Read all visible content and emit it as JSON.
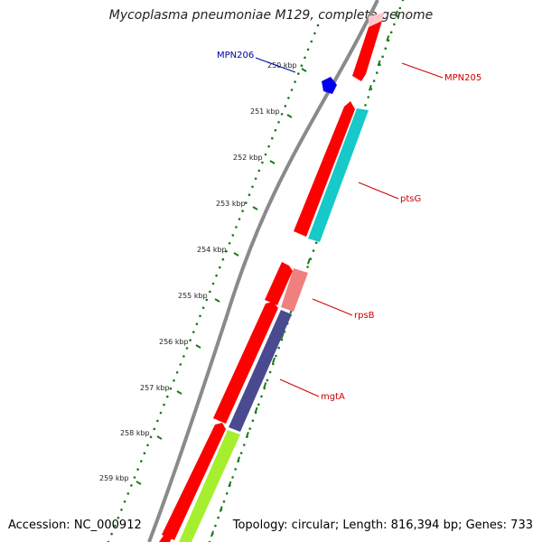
{
  "title": "Mycoplasma pneumoniae M129, complete genome",
  "footer": {
    "accession": "Accession: NC_000912",
    "topology": "Topology: circular; Length: 816,394 bp; Genes: 733"
  },
  "colors": {
    "backbone": "#8c8c8c",
    "ticks": "#1a7a1a",
    "gene_red": "#ff0000",
    "gene_pink": "#f08080",
    "gene_cyan": "#17c9c9",
    "gene_slate": "#4a4a90",
    "gene_lime": "#a6ef2f",
    "gene_blue": "#0000ee",
    "label_red": "#cc0000",
    "label_blue": "#000099"
  },
  "scale_labels": [
    "250 kbp",
    "251 kbp",
    "252 kbp",
    "253 kbp",
    "254 kbp",
    "255 kbp",
    "256 kbp",
    "257 kbp",
    "258 kbp",
    "259 kbp"
  ],
  "gene_labels": [
    {
      "id": "MPN205",
      "text": "MPN205"
    },
    {
      "id": "MPN206",
      "text": "MPN206"
    },
    {
      "id": "ptsG",
      "text": "ptsG"
    },
    {
      "id": "rpsB",
      "text": "rpsB"
    },
    {
      "id": "mgtA",
      "text": "mgtA"
    }
  ]
}
